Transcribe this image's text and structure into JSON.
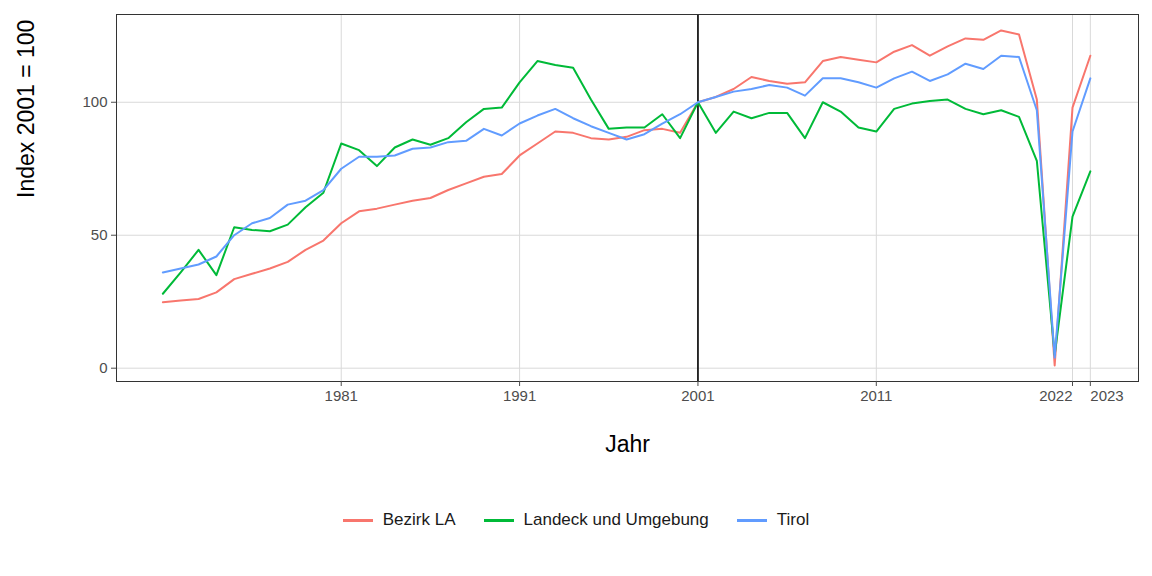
{
  "chart_data": {
    "type": "line",
    "x_label": "Jahr",
    "y_label": "Index 2001 = 100",
    "x": [
      1971,
      1972,
      1973,
      1974,
      1975,
      1976,
      1977,
      1978,
      1979,
      1980,
      1981,
      1982,
      1983,
      1984,
      1985,
      1986,
      1987,
      1988,
      1989,
      1990,
      1991,
      1992,
      1993,
      1994,
      1995,
      1996,
      1997,
      1998,
      1999,
      2000,
      2001,
      2002,
      2003,
      2004,
      2005,
      2006,
      2007,
      2008,
      2009,
      2010,
      2011,
      2012,
      2013,
      2014,
      2015,
      2016,
      2017,
      2018,
      2019,
      2020,
      2021,
      2022,
      2023
    ],
    "series": [
      {
        "name": "Bezirk LA",
        "color": "#F8766D",
        "values": [
          24.8,
          25.5,
          26,
          28.5,
          33.5,
          35.5,
          37.5,
          40,
          44.5,
          48,
          54.5,
          59,
          60,
          61.5,
          63,
          64,
          67,
          69.5,
          72,
          73,
          80,
          84.5,
          89,
          88.5,
          86.5,
          86,
          87,
          89.5,
          90,
          88.5,
          100,
          102,
          105,
          109.5,
          108,
          107,
          107.5,
          115.5,
          117,
          116,
          115,
          119,
          121.5,
          117.5,
          121,
          124,
          123.5,
          127,
          125.5,
          101,
          1,
          98,
          117.5
        ]
      },
      {
        "name": "Landeck und Umgebung",
        "color": "#00BA38",
        "values": [
          28,
          36,
          44.5,
          35,
          53,
          52,
          51.5,
          54,
          60.5,
          66,
          84.5,
          82,
          76,
          83,
          86,
          84,
          86.5,
          92.5,
          97.5,
          98,
          107.5,
          115.5,
          114,
          113,
          101,
          90,
          90.5,
          90.5,
          95.5,
          86.5,
          100,
          88.5,
          96.5,
          94,
          96,
          96,
          86.5,
          100,
          96.5,
          90.5,
          89,
          97.5,
          99.5,
          100.5,
          101,
          97.5,
          95.5,
          97,
          94.5,
          78,
          5,
          57,
          74
        ]
      },
      {
        "name": "Tirol",
        "color": "#619CFF",
        "values": [
          36,
          37.5,
          39,
          42,
          50,
          54.5,
          56.5,
          61.5,
          63,
          67,
          75,
          79.5,
          79.5,
          80,
          82.5,
          83,
          85,
          85.5,
          90,
          87.5,
          92,
          95,
          97.5,
          94,
          91,
          88.5,
          86,
          88,
          92,
          95.5,
          100,
          102,
          104,
          105,
          106.5,
          105.5,
          102.5,
          109,
          109,
          107.5,
          105.5,
          109,
          111.5,
          108,
          110.5,
          114.5,
          112.5,
          117.5,
          117,
          97,
          4,
          89,
          109
        ]
      }
    ],
    "vline": 2001,
    "xlim": [
      1968.4,
      2025.7
    ],
    "ylim": [
      -5,
      133
    ],
    "xticks": [
      1981,
      1991,
      2001,
      2011,
      2022,
      2023
    ],
    "yticks": [
      0,
      50,
      100
    ],
    "grid": true,
    "legend": "bottom"
  }
}
